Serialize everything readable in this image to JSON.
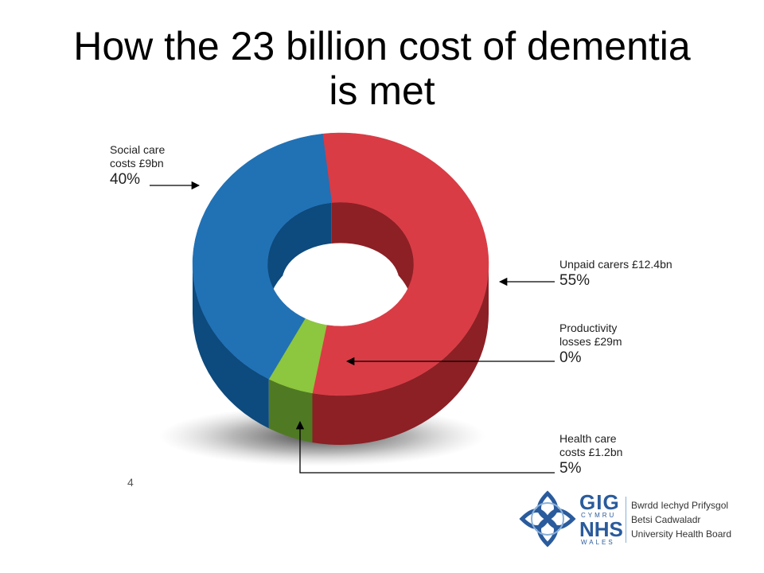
{
  "slide": {
    "title_line1": "How the 23 billion cost of dementia",
    "title_line2": "is met",
    "page_number": "4"
  },
  "chart_data": {
    "type": "pie",
    "style": "3d-donut",
    "title": "How the 23 billion cost of dementia is met",
    "slices": [
      {
        "name": "Unpaid carers £12.4bn",
        "pct_label": "55%",
        "value": 55,
        "color": "#d93c45",
        "dark": "#8c2025"
      },
      {
        "name": "Productivity losses £29m",
        "pct_label": "0%",
        "value": 0,
        "color": "#8dc63f",
        "dark": "#4f7a23"
      },
      {
        "name": "Health care costs £1.2bn",
        "pct_label": "5%",
        "value": 5,
        "color": "#8dc63f",
        "dark": "#4f7a23"
      },
      {
        "name": "Social care costs £9bn",
        "pct_label": "40%",
        "value": 40,
        "color": "#2171b5",
        "dark": "#0d4a7d"
      }
    ],
    "labels": {
      "unpaid": {
        "line1": "Unpaid carers £12.4bn",
        "pct": "55%"
      },
      "productivity": {
        "line1": "Productivity",
        "line2": "losses £29m",
        "pct": "0%"
      },
      "health": {
        "line1": "Health care",
        "line2": "costs £1.2bn",
        "pct": "5%"
      },
      "social": {
        "line1": "Social care",
        "line2": "costs £9bn",
        "pct": "40%"
      }
    }
  },
  "logo": {
    "gig": "GIG",
    "cymru": "CYMRU",
    "nhs": "NHS",
    "wales": "WALES",
    "board_line1": "Bwrdd Iechyd Prifysgol",
    "board_line2": "Betsi Cadwaladr",
    "board_line3": "University Health Board"
  }
}
